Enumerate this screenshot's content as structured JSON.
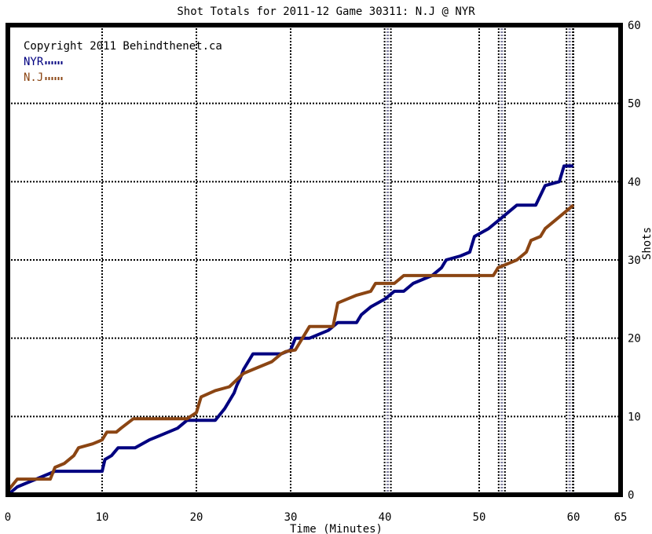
{
  "chart_data": {
    "type": "line",
    "title": "Shot Totals for 2011-12 Game 30311: N.J @ NYR",
    "xlabel": "Time (Minutes)",
    "ylabel": "Shots",
    "xlim": [
      0,
      65
    ],
    "ylim": [
      0,
      60
    ],
    "x_ticks": [
      0,
      10,
      20,
      30,
      40,
      50,
      60,
      65
    ],
    "y_ticks": [
      0,
      10,
      20,
      30,
      40,
      50,
      60
    ],
    "grid": true,
    "legend_position": "top-left",
    "copyright": "Copyright 2011 Behindthenet.ca",
    "goal_markers": [
      40.3,
      52.4,
      59.6
    ],
    "series": [
      {
        "name": "NYR",
        "color": "#000080",
        "points": [
          [
            0,
            0
          ],
          [
            1,
            1
          ],
          [
            2,
            1.5
          ],
          [
            3,
            2
          ],
          [
            4,
            2.5
          ],
          [
            5,
            3
          ],
          [
            6,
            3
          ],
          [
            10,
            3
          ],
          [
            10.3,
            4.5
          ],
          [
            11,
            5
          ],
          [
            11.7,
            6
          ],
          [
            13.5,
            6
          ],
          [
            15,
            7
          ],
          [
            16,
            7.5
          ],
          [
            17,
            8
          ],
          [
            18,
            8.5
          ],
          [
            18.5,
            9
          ],
          [
            19,
            9.5
          ],
          [
            22,
            9.5
          ],
          [
            23,
            11
          ],
          [
            24,
            13
          ],
          [
            24.3,
            14
          ],
          [
            24.7,
            15
          ],
          [
            25,
            16
          ],
          [
            26,
            18
          ],
          [
            29,
            18
          ],
          [
            30,
            18.5
          ],
          [
            30.5,
            20
          ],
          [
            32,
            20
          ],
          [
            34,
            21
          ],
          [
            35,
            22
          ],
          [
            37,
            22
          ],
          [
            37.5,
            23
          ],
          [
            38.5,
            24
          ],
          [
            40,
            25
          ],
          [
            41,
            26
          ],
          [
            42,
            26
          ],
          [
            43,
            27
          ],
          [
            45,
            28
          ],
          [
            46,
            29
          ],
          [
            46.5,
            30
          ],
          [
            48,
            30.5
          ],
          [
            49,
            31
          ],
          [
            49.5,
            33
          ],
          [
            51,
            34
          ],
          [
            52,
            35
          ],
          [
            53,
            36
          ],
          [
            54,
            37
          ],
          [
            56,
            37
          ],
          [
            57,
            39.5
          ],
          [
            58.5,
            40
          ],
          [
            59,
            42
          ],
          [
            60,
            42
          ]
        ]
      },
      {
        "name": "N.J",
        "color": "#8B4513",
        "points": [
          [
            0,
            0.5
          ],
          [
            1,
            2
          ],
          [
            4.5,
            2
          ],
          [
            5,
            3.5
          ],
          [
            6,
            4
          ],
          [
            7,
            5
          ],
          [
            7.5,
            6
          ],
          [
            9,
            6.5
          ],
          [
            10,
            7
          ],
          [
            10.5,
            8
          ],
          [
            11.5,
            8
          ],
          [
            12,
            8.5
          ],
          [
            13.3,
            9.7
          ],
          [
            19,
            9.7
          ],
          [
            20,
            10.5
          ],
          [
            20.5,
            12.5
          ],
          [
            22,
            13.3
          ],
          [
            23.5,
            13.8
          ],
          [
            25,
            15.5
          ],
          [
            26,
            16
          ],
          [
            28,
            17
          ],
          [
            29,
            18
          ],
          [
            29.5,
            18.3
          ],
          [
            30.5,
            18.5
          ],
          [
            31.5,
            20.5
          ],
          [
            32,
            21.5
          ],
          [
            34.5,
            21.5
          ],
          [
            35,
            24.5
          ],
          [
            36,
            25
          ],
          [
            37,
            25.5
          ],
          [
            38.5,
            26
          ],
          [
            39,
            27
          ],
          [
            41,
            27
          ],
          [
            42,
            28
          ],
          [
            51.5,
            28
          ],
          [
            52,
            29
          ],
          [
            54,
            30
          ],
          [
            55,
            31
          ],
          [
            55.5,
            32.5
          ],
          [
            56.5,
            33
          ],
          [
            57,
            34
          ],
          [
            58,
            35
          ],
          [
            59,
            36
          ],
          [
            60,
            37
          ]
        ]
      }
    ]
  }
}
